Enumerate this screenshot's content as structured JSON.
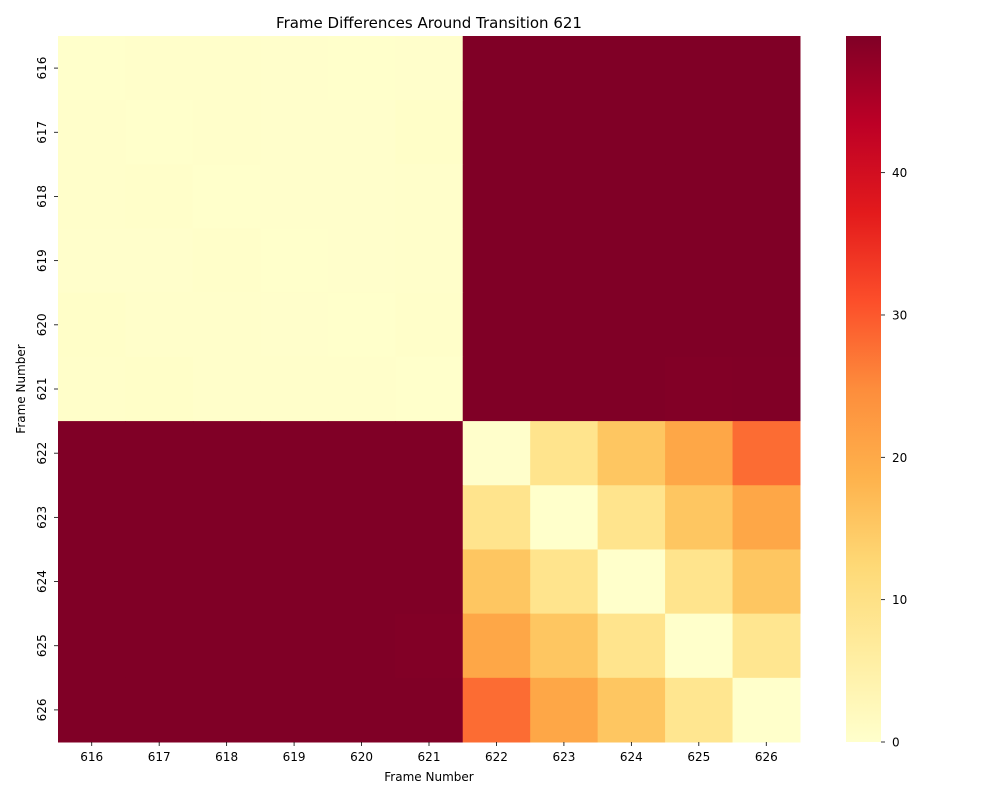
{
  "chart_data": {
    "type": "heatmap",
    "title": "Frame Differences Around Transition 621",
    "xlabel": "Frame Number",
    "ylabel": "Frame Number",
    "x_categories": [
      "616",
      "617",
      "618",
      "619",
      "620",
      "621",
      "622",
      "623",
      "624",
      "625",
      "626"
    ],
    "y_categories": [
      "616",
      "617",
      "618",
      "619",
      "620",
      "621",
      "622",
      "623",
      "624",
      "625",
      "626"
    ],
    "values": [
      [
        0.1,
        0.3,
        0.3,
        0.2,
        0.1,
        0.2,
        49.6,
        49.6,
        49.6,
        49.6,
        49.6
      ],
      [
        0.3,
        0.1,
        0.3,
        0.2,
        0.2,
        0.5,
        49.6,
        49.6,
        49.6,
        49.6,
        49.6
      ],
      [
        0.3,
        0.4,
        0.1,
        0.2,
        0.2,
        0.3,
        49.6,
        49.6,
        49.6,
        49.6,
        49.6
      ],
      [
        0.2,
        0.2,
        0.4,
        0.1,
        0.2,
        0.3,
        49.6,
        49.6,
        49.6,
        49.6,
        49.6
      ],
      [
        0.5,
        0.3,
        0.3,
        0.2,
        0.1,
        0.4,
        49.6,
        49.6,
        49.6,
        49.6,
        49.6
      ],
      [
        0.4,
        0.5,
        0.3,
        0.3,
        0.3,
        0.1,
        49.6,
        49.6,
        49.6,
        49.4,
        49.5
      ],
      [
        49.6,
        49.6,
        49.6,
        49.6,
        49.6,
        49.6,
        0.2,
        9.0,
        15.5,
        20.5,
        28.0
      ],
      [
        49.6,
        49.6,
        49.6,
        49.6,
        49.6,
        49.6,
        9.0,
        0.1,
        9.0,
        15.5,
        20.5
      ],
      [
        49.6,
        49.6,
        49.6,
        49.6,
        49.6,
        49.6,
        15.5,
        9.0,
        0.1,
        9.0,
        15.5
      ],
      [
        49.6,
        49.6,
        49.6,
        49.6,
        49.6,
        49.4,
        20.5,
        15.5,
        9.0,
        0.1,
        8.5
      ],
      [
        49.6,
        49.6,
        49.6,
        49.6,
        49.6,
        49.6,
        28.0,
        20.5,
        15.5,
        8.5,
        0.1
      ]
    ],
    "vmin": 0,
    "vmax": 49.6,
    "colormap": "YlOrRd",
    "colorbar_ticks": [
      "0",
      "10",
      "20",
      "30",
      "40"
    ],
    "colorbar_tick_values": [
      0,
      10,
      20,
      30,
      40
    ]
  }
}
